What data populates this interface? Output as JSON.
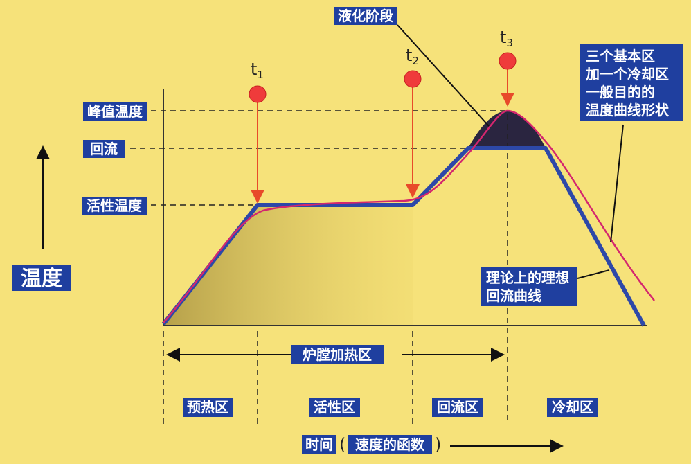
{
  "y_axis_label": "温度",
  "levels": {
    "peak": "峰值温度",
    "reflow": "回流",
    "active": "活性温度"
  },
  "phase_label": "液化阶段",
  "markers": [
    {
      "name": "t",
      "sub": "1"
    },
    {
      "name": "t",
      "sub": "2"
    },
    {
      "name": "t",
      "sub": "3"
    }
  ],
  "note_three_zones": [
    "三个基本区",
    "加一个冷却区",
    "一般目的的",
    "温度曲线形状"
  ],
  "note_ideal": [
    "理论上的理想",
    "回流曲线"
  ],
  "furnace_zone": "炉膛加热区",
  "zones": [
    "预热区",
    "活性区",
    "回流区",
    "冷却区"
  ],
  "x_axis": {
    "prefix": "时间",
    "paren_open": "(",
    "text": "速度的函数",
    "paren_close": ")"
  },
  "colors": {
    "background": "#f6e27a",
    "label_bg": "#1f3f9f",
    "ideal_curve": "#2d48a8",
    "real_curve": "#d4266e",
    "marker": "#ef3b3b",
    "liquid_area": "#2a2540"
  }
}
